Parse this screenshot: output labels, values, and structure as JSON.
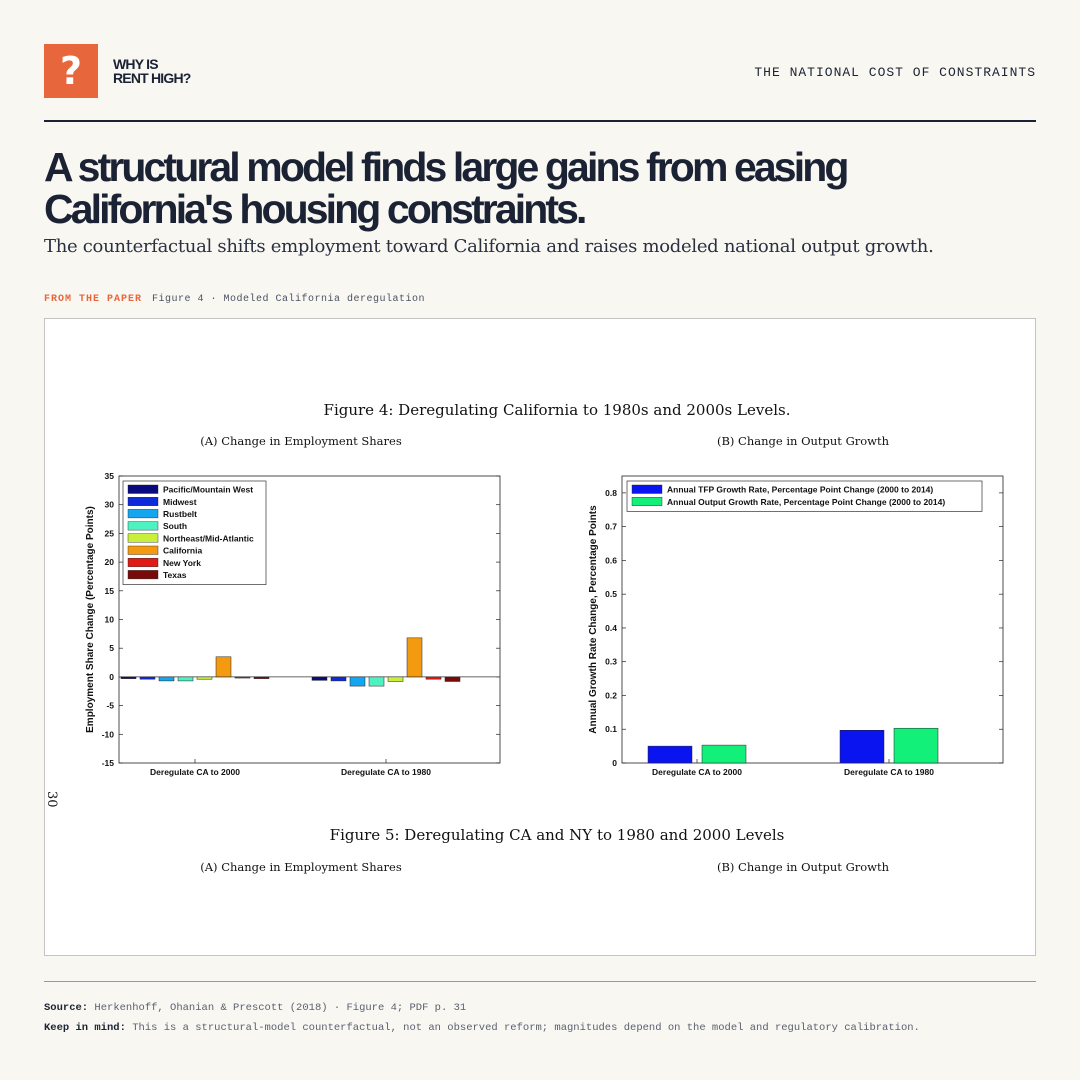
{
  "brand": {
    "badge": "?",
    "name": "WHY IS\nRENT HIGH?"
  },
  "kicker": "THE NATIONAL COST OF CONSTRAINTS",
  "headline": "A structural model finds large gains from easing California's housing constraints.",
  "subhead": "The counterfactual shifts employment toward California and raises modeled national output growth.",
  "figure_label": {
    "tag": "FROM THE PAPER",
    "caption": "Figure 4 · Modeled California deregulation"
  },
  "page_number": "30",
  "figure4_title": "Figure 4: Deregulating California to 1980s and 2000s Levels.",
  "figure5_title": "Figure 5: Deregulating CA and NY to 1980 and 2000 Levels",
  "figure5_panels": {
    "a": "(A) Change in Employment Shares",
    "b": "(B) Change in Output Growth"
  },
  "chart_data": [
    {
      "type": "bar",
      "title": "(A) Change in Employment Shares",
      "xlabel": "",
      "ylabel": "Employment Share Change (Percentage Points)",
      "categories": [
        "Deregulate CA to 2000",
        "Deregulate CA to 1980"
      ],
      "ylim": [
        -15,
        35
      ],
      "yticks": [
        -15,
        -10,
        -5,
        0,
        5,
        10,
        15,
        20,
        25,
        30,
        35
      ],
      "legend_position": "top-left",
      "series": [
        {
          "name": "Pacific/Mountain West",
          "color": "#0a0a80",
          "values": [
            -0.3,
            -0.6
          ]
        },
        {
          "name": "Midwest",
          "color": "#0f2ad8",
          "values": [
            -0.4,
            -0.7
          ]
        },
        {
          "name": "Rustbelt",
          "color": "#14a6ee",
          "values": [
            -0.7,
            -1.6
          ]
        },
        {
          "name": "South",
          "color": "#4ef2c0",
          "values": [
            -0.7,
            -1.6
          ]
        },
        {
          "name": "Northeast/Mid-Atlantic",
          "color": "#c8f03a",
          "values": [
            -0.4,
            -0.8
          ]
        },
        {
          "name": "California",
          "color": "#f49a10",
          "values": [
            3.5,
            6.8
          ]
        },
        {
          "name": "New York",
          "color": "#e01a14",
          "values": [
            -0.2,
            -0.4
          ]
        },
        {
          "name": "Texas",
          "color": "#7a0a0a",
          "values": [
            -0.3,
            -0.8
          ]
        }
      ]
    },
    {
      "type": "bar",
      "title": "(B) Change in Output Growth",
      "xlabel": "",
      "ylabel": "Annual Growth Rate Change, Percentage Points",
      "categories": [
        "Deregulate CA to 2000",
        "Deregulate CA to 1980"
      ],
      "ylim": [
        0,
        0.85
      ],
      "yticks": [
        0,
        0.1,
        0.2,
        0.3,
        0.4,
        0.5,
        0.6,
        0.7,
        0.8
      ],
      "legend_position": "top-left",
      "series": [
        {
          "name": "Annual TFP Growth Rate, Percentage Point Change (2000 to 2014)",
          "color": "#0a14f0",
          "values": [
            0.05,
            0.097
          ]
        },
        {
          "name": "Annual Output Growth Rate, Percentage Point Change (2000 to 2014)",
          "color": "#12f07a",
          "values": [
            0.053,
            0.103
          ]
        }
      ]
    }
  ],
  "source": {
    "label": "Source:",
    "text": "Herkenhoff, Ohanian & Prescott (2018) · Figure 4; PDF p. 31"
  },
  "caveat": {
    "label": "Keep in mind:",
    "text": "This is a structural-model counterfactual, not an observed reform; magnitudes depend on the model and regulatory calibration."
  }
}
